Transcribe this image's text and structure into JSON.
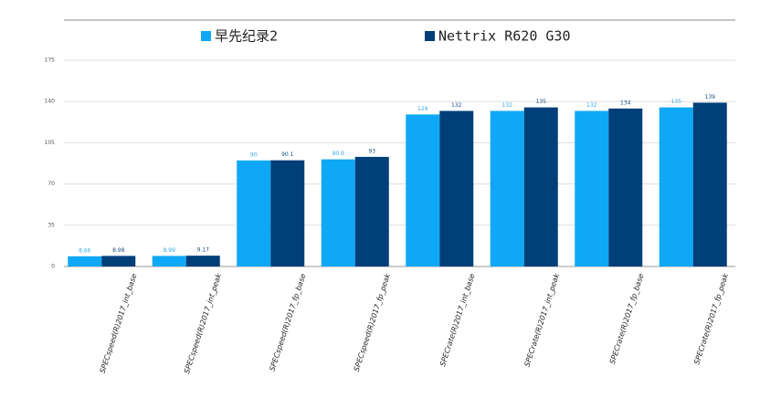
{
  "chart_data": {
    "type": "bar",
    "categories": [
      "SPECspeed(R)2017_int_base",
      "SPECspeed(R)2017_int_peak",
      "SPECspeed(R)2017_fp_base",
      "SPECspeed(R)2017_fp_peak",
      "SPECrate(R)2017_int_base",
      "SPECrate(R)2017_int_peak",
      "SPECrate(R)2017_fp_base",
      "SPECrate(R)2017_fp_peak"
    ],
    "series": [
      {
        "name": "早先纪录2",
        "color": "#0ea8f6",
        "values": [
          8.66,
          8.99,
          90,
          90.9,
          129,
          132,
          132,
          135
        ]
      },
      {
        "name": "Nettrix R620 G30",
        "color": "#003f78",
        "values": [
          8.98,
          9.17,
          90.1,
          93,
          132,
          135,
          134,
          139
        ]
      }
    ],
    "ylim": [
      0,
      175
    ],
    "yticks": [
      0,
      35,
      70,
      105,
      140,
      175
    ],
    "grid": true
  }
}
